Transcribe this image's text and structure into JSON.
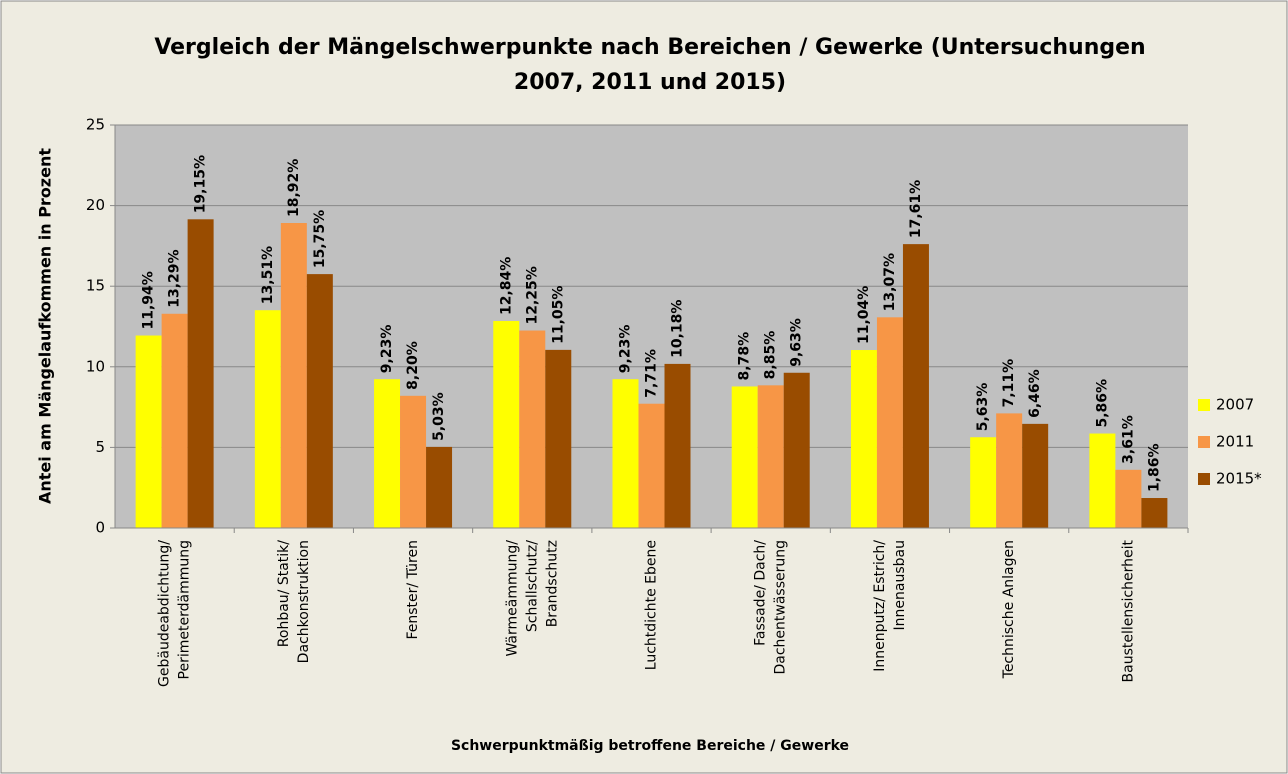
{
  "chart_data": {
    "type": "bar",
    "title": [
      "Vergleich der Mängelschwerpunkte nach Bereichen / Gewerke (Untersuchungen",
      "2007, 2011 und 2015)"
    ],
    "x_label": "Schwerpunktmäßig betroffene Bereiche / Gewerke",
    "y_label": "Antei am Mängelaufkommen in Prozent",
    "categories": [
      [
        "Gebäudeabdichtung/",
        "Perimeterdämmung"
      ],
      [
        "Rohbau/ Statik/",
        "Dachkonstruktion"
      ],
      [
        "Fenster/ Türen"
      ],
      [
        "Wärmeämmung/",
        "Schallschutz/",
        "Brandschutz"
      ],
      [
        "Luchtdichte Ebene"
      ],
      [
        "Fassade/ Dach/",
        "Dachentwässerung"
      ],
      [
        "Innenputz/ Estrich/",
        "Innenausbau"
      ],
      [
        "Technische Anlagen"
      ],
      [
        "Baustellensicherheit"
      ]
    ],
    "series": [
      {
        "name": "2007",
        "color": "#ffff00",
        "values": [
          11.94,
          13.51,
          9.23,
          12.84,
          9.23,
          8.78,
          11.04,
          5.63,
          5.86
        ],
        "value_labels": [
          "11,94%",
          "13,51%",
          "9,23%",
          "12,84%",
          "9,23%",
          "8,78%",
          "11,04%",
          "5,63%",
          "5,86%"
        ]
      },
      {
        "name": "2011",
        "color": "#f79646",
        "values": [
          13.29,
          18.92,
          8.2,
          12.25,
          7.71,
          8.85,
          13.07,
          7.11,
          3.61
        ],
        "value_labels": [
          "13,29%",
          "18,92%",
          "8,20%",
          "12,25%",
          "7,71%",
          "8,85%",
          "13,07%",
          "7,11%",
          "3,61%"
        ]
      },
      {
        "name": "2015*",
        "color": "#994c00",
        "values": [
          19.15,
          15.75,
          5.03,
          11.05,
          10.18,
          9.63,
          17.61,
          6.46,
          1.86
        ],
        "value_labels": [
          "19,15%",
          "15,75%",
          "5,03%",
          "11,05%",
          "10,18%",
          "9,63%",
          "17,61%",
          "6,46%",
          "1,86%"
        ]
      }
    ],
    "ylim": [
      0,
      25
    ],
    "yticks": [
      0,
      5,
      10,
      15,
      20,
      25
    ],
    "grid": true,
    "legend": "right"
  }
}
